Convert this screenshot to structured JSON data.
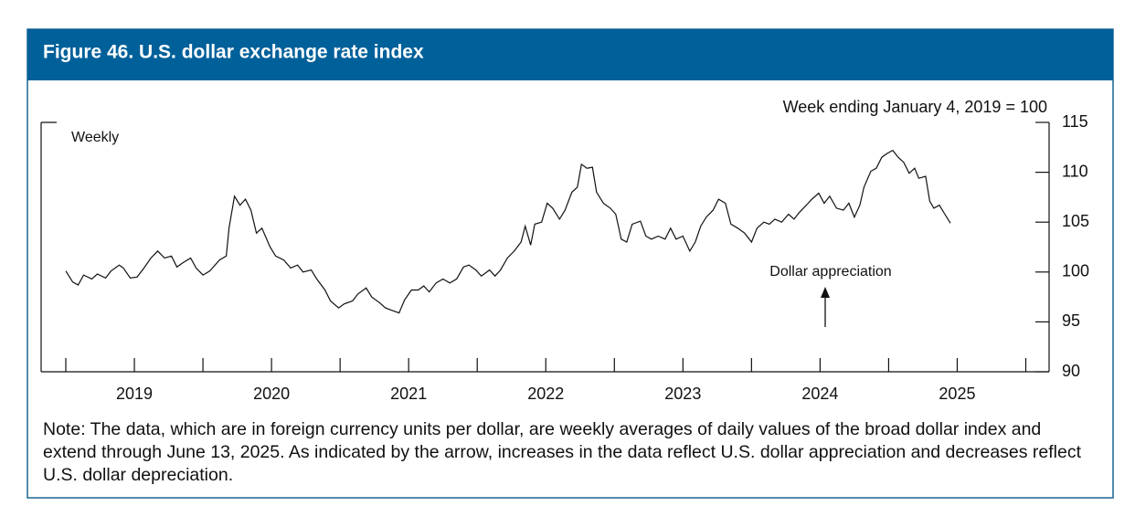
{
  "chart_data": {
    "type": "line",
    "title": "Figure 46. U.S. dollar exchange rate index",
    "index_note": "Week ending January 4, 2019 = 100",
    "frequency_label": "Weekly",
    "arrow_label": "Dollar appreciation",
    "note": "Note: The data, which are in foreign currency units per dollar, are weekly averages of daily values of the broad dollar index and extend through June 13, 2025. As indicated by the arrow, increases in the data reflect U.S. dollar appreciation and decreases reflect U.S. dollar depreciation.",
    "color": "#111111",
    "xlim": [
      2018.82,
      2026.17
    ],
    "xticks": [
      {
        "value": 2019.5,
        "label": "2019"
      },
      {
        "value": 2020.5,
        "label": "2020"
      },
      {
        "value": 2021.5,
        "label": "2021"
      },
      {
        "value": 2022.5,
        "label": "2022"
      },
      {
        "value": 2023.5,
        "label": "2023"
      },
      {
        "value": 2024.5,
        "label": "2024"
      },
      {
        "value": 2025.5,
        "label": "2025"
      }
    ],
    "xminor_ticks": [
      2019,
      2020,
      2021,
      2022,
      2023,
      2024,
      2025,
      2026
    ],
    "ylim": [
      90,
      115
    ],
    "yticks": [
      90,
      95,
      100,
      105,
      110,
      115
    ],
    "x": [
      2019.0,
      2019.05,
      2019.09,
      2019.13,
      2019.19,
      2019.23,
      2019.29,
      2019.33,
      2019.39,
      2019.42,
      2019.47,
      2019.52,
      2019.57,
      2019.62,
      2019.67,
      2019.72,
      2019.77,
      2019.81,
      2019.85,
      2019.91,
      2019.95,
      2020.0,
      2020.05,
      2020.12,
      2020.17,
      2020.19,
      2020.23,
      2020.27,
      2020.31,
      2020.35,
      2020.39,
      2020.43,
      2020.49,
      2020.53,
      2020.59,
      2020.64,
      2020.69,
      2020.73,
      2020.79,
      2020.83,
      2020.89,
      2020.93,
      2020.99,
      2021.03,
      2021.09,
      2021.13,
      2021.19,
      2021.23,
      2021.29,
      2021.33,
      2021.39,
      2021.43,
      2021.47,
      2021.52,
      2021.57,
      2021.61,
      2021.65,
      2021.7,
      2021.75,
      2021.8,
      2021.85,
      2021.9,
      2021.94,
      2021.99,
      2022.03,
      2022.09,
      2022.13,
      2022.17,
      2022.22,
      2022.27,
      2022.32,
      2022.35,
      2022.39,
      2022.42,
      2022.47,
      2022.51,
      2022.55,
      2022.6,
      2022.64,
      2022.69,
      2022.73,
      2022.76,
      2022.8,
      2022.84,
      2022.87,
      2022.92,
      2022.97,
      2023.01,
      2023.05,
      2023.09,
      2023.13,
      2023.19,
      2023.23,
      2023.27,
      2023.32,
      2023.37,
      2023.41,
      2023.45,
      2023.5,
      2023.55,
      2023.59,
      2023.63,
      2023.67,
      2023.72,
      2023.76,
      2023.81,
      2023.85,
      2023.9,
      2023.95,
      2024.0,
      2024.04,
      2024.09,
      2024.13,
      2024.17,
      2024.22,
      2024.27,
      2024.31,
      2024.35,
      2024.4,
      2024.44,
      2024.49,
      2024.53,
      2024.57,
      2024.62,
      2024.67,
      2024.71,
      2024.75,
      2024.79,
      2024.82,
      2024.87,
      2024.91,
      2024.95,
      2024.99,
      2025.03,
      2025.07,
      2025.11,
      2025.15,
      2025.19,
      2025.22,
      2025.27,
      2025.3,
      2025.33,
      2025.37,
      2025.41,
      2025.45
    ],
    "values": [
      100.1,
      99.0,
      98.7,
      99.7,
      99.3,
      99.8,
      99.4,
      100.1,
      100.7,
      100.4,
      99.4,
      99.5,
      100.4,
      101.4,
      102.1,
      101.4,
      101.6,
      100.5,
      100.9,
      101.4,
      100.4,
      99.7,
      100.1,
      101.2,
      101.6,
      104.4,
      107.6,
      106.7,
      107.3,
      106.2,
      103.9,
      104.4,
      102.5,
      101.6,
      101.2,
      100.4,
      100.7,
      100.0,
      100.2,
      99.3,
      98.2,
      97.1,
      96.4,
      96.8,
      97.1,
      97.8,
      98.4,
      97.5,
      96.9,
      96.4,
      96.1,
      95.9,
      97.2,
      98.2,
      98.2,
      98.6,
      98.0,
      98.9,
      99.3,
      98.9,
      99.3,
      100.5,
      100.7,
      100.2,
      99.6,
      100.2,
      99.6,
      100.2,
      101.4,
      102.1,
      103.0,
      104.6,
      102.7,
      104.8,
      105.0,
      106.9,
      106.4,
      105.3,
      106.2,
      108.0,
      108.5,
      110.8,
      110.4,
      110.5,
      108.0,
      106.9,
      106.4,
      105.8,
      103.3,
      103.0,
      104.8,
      105.1,
      103.6,
      103.3,
      103.6,
      103.3,
      104.4,
      103.3,
      103.6,
      102.1,
      103.0,
      104.6,
      105.5,
      106.2,
      107.3,
      106.9,
      104.8,
      104.4,
      103.9,
      103.0,
      104.4,
      105.0,
      104.8,
      105.3,
      105.0,
      105.8,
      105.3,
      106.0,
      106.7,
      107.3,
      107.9,
      106.9,
      107.6,
      106.4,
      106.2,
      106.9,
      105.5,
      106.7,
      108.5,
      110.1,
      110.4,
      111.5,
      111.9,
      112.2,
      111.5,
      111.0,
      109.9,
      110.4,
      109.4,
      109.6,
      107.1,
      106.4,
      106.7,
      105.8,
      104.9
    ]
  }
}
